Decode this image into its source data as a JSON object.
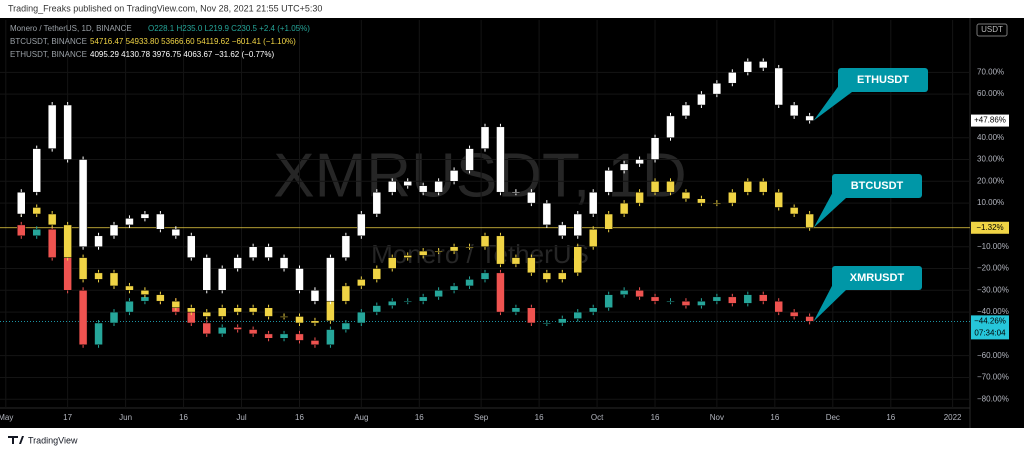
{
  "header": {
    "publisher": "Trading_Freaks published on TradingView.com, Nov 28, 2021 21:55 UTC+5:30"
  },
  "legend": [
    {
      "symbol": "Monero / TetherUS, 1D, BINANCE",
      "quote": "O228.1 H235.0 L219.9 C230.5 +2.4 (+1.05%)"
    },
    {
      "symbol": "BTCUSDT, BINANCE",
      "quote": "54716.47 54933.80 53666.60 54119.62 −601.41 (−1.10%)"
    },
    {
      "symbol": "ETHUSDT, BINANCE",
      "quote": "4095.29 4130.78 3976.75 4063.67 −31.62 (−0.77%)"
    }
  ],
  "watermark": {
    "symbol": "XMRUSDT, 1D",
    "description": "Monero / TetherUS"
  },
  "axis_unit": "USDT",
  "countdown": "07:34:04",
  "footer": {
    "brand": "TradingView"
  },
  "chart_data": {
    "type": "candlestick",
    "grid": true,
    "x": [
      0,
      4,
      8,
      12,
      16,
      20,
      24,
      28,
      32,
      36,
      40,
      44,
      48,
      52,
      56,
      60,
      64,
      68,
      72,
      76,
      80,
      84,
      88,
      92,
      96,
      100,
      104,
      108,
      112,
      116,
      120,
      124,
      128,
      132,
      136,
      140,
      144,
      148,
      152,
      156,
      160,
      164,
      168,
      172,
      176,
      180,
      184,
      188,
      192,
      196,
      200,
      204,
      208
    ],
    "xlim": [
      -1.5,
      249.5
    ],
    "xticks": [
      {
        "value": 0,
        "label": "May"
      },
      {
        "value": 16,
        "label": "17"
      },
      {
        "value": 31,
        "label": "Jun"
      },
      {
        "value": 46,
        "label": "16"
      },
      {
        "value": 61,
        "label": "Jul"
      },
      {
        "value": 76,
        "label": "16"
      },
      {
        "value": 92,
        "label": "Aug"
      },
      {
        "value": 107,
        "label": "16"
      },
      {
        "value": 123,
        "label": "Sep"
      },
      {
        "value": 138,
        "label": "16"
      },
      {
        "value": 153,
        "label": "Oct"
      },
      {
        "value": 168,
        "label": "16"
      },
      {
        "value": 184,
        "label": "Nov"
      },
      {
        "value": 199,
        "label": "16"
      },
      {
        "value": 214,
        "label": "Dec"
      },
      {
        "value": 229,
        "label": "16"
      },
      {
        "value": 245,
        "label": "2022"
      }
    ],
    "ylim": [
      -84,
      94
    ],
    "yticks": [
      {
        "value": 70,
        "label": "70.00%"
      },
      {
        "value": 60,
        "label": "60.00%"
      },
      {
        "value": 40,
        "label": "40.00%"
      },
      {
        "value": 30,
        "label": "30.00%"
      },
      {
        "value": 20,
        "label": "20.00%"
      },
      {
        "value": 10,
        "label": "10.00%"
      },
      {
        "value": -10,
        "label": "−10.00%"
      },
      {
        "value": -20,
        "label": "−20.00%"
      },
      {
        "value": -30,
        "label": "−30.00%"
      },
      {
        "value": -40,
        "label": "−40.00%"
      },
      {
        "value": -60,
        "label": "−60.00%"
      },
      {
        "value": -70,
        "label": "−70.00%"
      },
      {
        "value": -80,
        "label": "−80.00%"
      }
    ],
    "series": [
      {
        "name": "ETHUSDT",
        "color": "#ffffff",
        "down_color": "#ffffff",
        "label_bg": "#ffffff",
        "label_fg": "#000000",
        "values": [
          5,
          15,
          35,
          55,
          30,
          -10,
          -5,
          0,
          3,
          5,
          -2,
          -5,
          -15,
          -30,
          -20,
          -15,
          -10,
          -15,
          -20,
          -30,
          -35,
          -15,
          -5,
          5,
          15,
          20,
          18,
          15,
          20,
          25,
          35,
          45,
          15,
          15,
          10,
          0,
          -5,
          5,
          15,
          25,
          28,
          30,
          40,
          50,
          55,
          60,
          65,
          70,
          75,
          72,
          55,
          50,
          47.86
        ],
        "value_labels": [
          null,
          null,
          null,
          null,
          null,
          null,
          null,
          null,
          null,
          null,
          null,
          null,
          null,
          null,
          null,
          null,
          null,
          null,
          null,
          null,
          null,
          null,
          null,
          null,
          null,
          null,
          null,
          null,
          null,
          null,
          null,
          null,
          null,
          null,
          null,
          null,
          null,
          null,
          null,
          null,
          null,
          null,
          null,
          null,
          null,
          null,
          null,
          null,
          null,
          null,
          null,
          null,
          "+47.86%"
        ]
      },
      {
        "name": "BTCUSDT",
        "color": "#f0d445",
        "down_color": "#f0d445",
        "label_bg": "#f0d445",
        "label_fg": "#000000",
        "values": [
          5,
          8,
          5,
          0,
          -15,
          -25,
          -22,
          -28,
          -30,
          -32,
          -35,
          -38,
          -40,
          -42,
          -38,
          -40,
          -38,
          -42,
          -42,
          -45,
          -44,
          -35,
          -28,
          -25,
          -20,
          -15,
          -14,
          -12,
          -12,
          -10,
          -10,
          -5,
          -18,
          -15,
          -22,
          -25,
          -22,
          -10,
          -2,
          5,
          10,
          15,
          20,
          15,
          12,
          10,
          10,
          15,
          20,
          15,
          8,
          5,
          -1.32
        ],
        "value_labels": [
          null,
          null,
          null,
          null,
          null,
          null,
          null,
          null,
          null,
          null,
          null,
          null,
          null,
          null,
          null,
          null,
          null,
          null,
          null,
          null,
          null,
          null,
          null,
          null,
          null,
          null,
          null,
          null,
          null,
          null,
          null,
          null,
          null,
          null,
          null,
          null,
          null,
          null,
          null,
          null,
          null,
          null,
          null,
          null,
          null,
          null,
          null,
          null,
          null,
          null,
          null,
          null,
          "−1.32%"
        ]
      },
      {
        "name": "XMRUSDT",
        "color": "#26a69a",
        "down_color": "#ef5350",
        "label_bg": "#26c6da",
        "label_fg": "#000000",
        "values": [
          0,
          -5,
          -2,
          -15,
          -30,
          -55,
          -45,
          -40,
          -35,
          -33,
          -35,
          -40,
          -45,
          -50,
          -47,
          -48,
          -50,
          -52,
          -50,
          -53,
          -55,
          -48,
          -45,
          -40,
          -37,
          -35,
          -35,
          -33,
          -30,
          -28,
          -25,
          -22,
          -40,
          -38,
          -45,
          -45,
          -43,
          -40,
          -38,
          -32,
          -30,
          -33,
          -35,
          -35,
          -37,
          -35,
          -33,
          -36,
          -32,
          -35,
          -40,
          -42,
          -44.26
        ],
        "value_labels": [
          null,
          null,
          null,
          null,
          null,
          null,
          null,
          null,
          null,
          null,
          null,
          null,
          null,
          null,
          null,
          null,
          null,
          null,
          null,
          null,
          null,
          null,
          null,
          null,
          null,
          null,
          null,
          null,
          null,
          null,
          null,
          null,
          null,
          null,
          null,
          null,
          null,
          null,
          null,
          null,
          null,
          null,
          null,
          null,
          null,
          null,
          null,
          null,
          null,
          null,
          null,
          null,
          "−44.26%"
        ]
      }
    ]
  }
}
